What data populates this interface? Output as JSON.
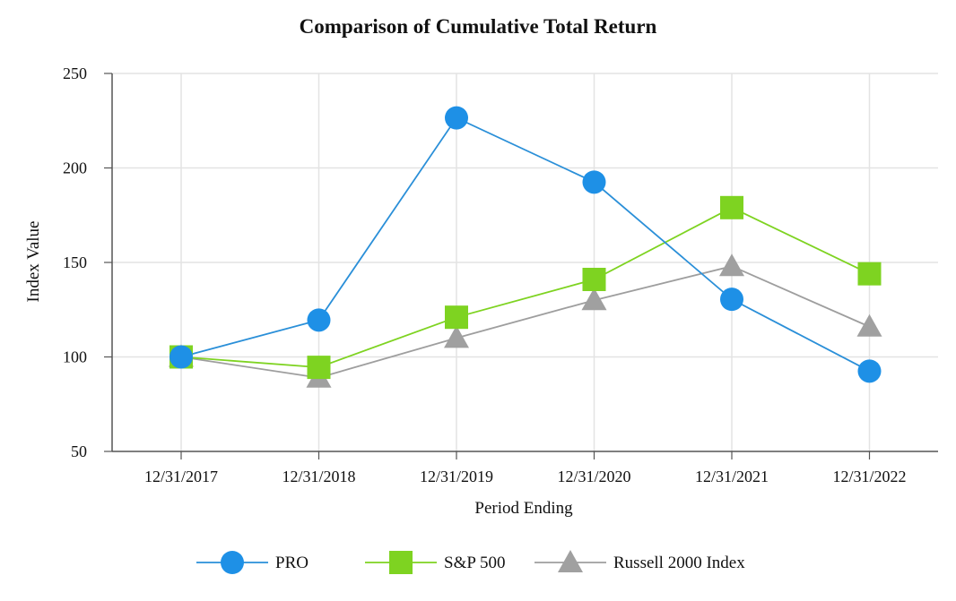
{
  "chart_data": {
    "type": "line",
    "title": "Comparison of Cumulative Total Return",
    "xlabel": "Period Ending",
    "ylabel": "Index Value",
    "categories": [
      "12/31/2017",
      "12/31/2018",
      "12/31/2019",
      "12/31/2020",
      "12/31/2021",
      "12/31/2022"
    ],
    "ylim": [
      50,
      250
    ],
    "yticks": [
      50,
      100,
      150,
      200,
      250
    ],
    "grid": true,
    "legend_position": "bottom",
    "series": [
      {
        "name": "PRO",
        "marker": "circle",
        "color": "#1E90E6",
        "line_color": "#2A8FD8",
        "values": [
          100,
          119.5,
          226.5,
          192.5,
          130.5,
          92.5
        ]
      },
      {
        "name": "S&P 500",
        "marker": "square",
        "color": "#7ED321",
        "line_color": "#7ED321",
        "values": [
          100,
          94.5,
          121,
          141,
          179,
          144
        ]
      },
      {
        "name": "Russell 2000 Index",
        "marker": "triangle",
        "color": "#A0A0A0",
        "line_color": "#9E9E9E",
        "values": [
          100,
          89,
          110,
          130,
          148,
          116
        ]
      }
    ]
  }
}
